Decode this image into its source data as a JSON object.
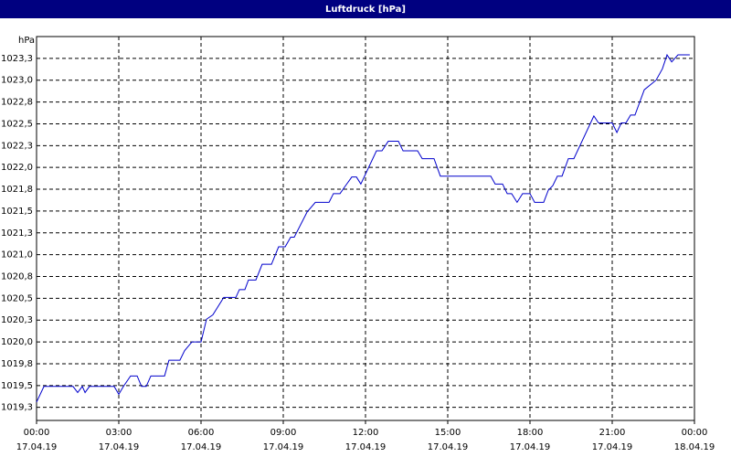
{
  "chart_data": {
    "type": "line",
    "title": "Luftdruck [hPa]",
    "y_label": "hPa",
    "xlim": [
      0,
      24
    ],
    "xticks": [
      {
        "value": 0,
        "label": "00:00",
        "date": "17.04.19"
      },
      {
        "value": 3,
        "label": "03:00",
        "date": "17.04.19"
      },
      {
        "value": 6,
        "label": "06:00",
        "date": "17.04.19"
      },
      {
        "value": 9,
        "label": "09:00",
        "date": "17.04.19"
      },
      {
        "value": 12,
        "label": "12:00",
        "date": "17.04.19"
      },
      {
        "value": 15,
        "label": "15:00",
        "date": "17.04.19"
      },
      {
        "value": 18,
        "label": "18:00",
        "date": "17.04.19"
      },
      {
        "value": 21,
        "label": "21:00",
        "date": "17.04.19"
      },
      {
        "value": 24,
        "label": "00:00",
        "date": "18.04.19"
      }
    ],
    "ylim": [
      1019.1,
      1023.5
    ],
    "yticks": [
      {
        "value": 1019.25,
        "label": "1019,3"
      },
      {
        "value": 1019.5,
        "label": "1019,5"
      },
      {
        "value": 1019.75,
        "label": "1019,8"
      },
      {
        "value": 1020.0,
        "label": "1020,0"
      },
      {
        "value": 1020.25,
        "label": "1020,3"
      },
      {
        "value": 1020.5,
        "label": "1020,5"
      },
      {
        "value": 1020.75,
        "label": "1020,8"
      },
      {
        "value": 1021.0,
        "label": "1021,0"
      },
      {
        "value": 1021.25,
        "label": "1021,3"
      },
      {
        "value": 1021.5,
        "label": "1021,5"
      },
      {
        "value": 1021.75,
        "label": "1021,8"
      },
      {
        "value": 1022.0,
        "label": "1022,0"
      },
      {
        "value": 1022.25,
        "label": "1022,3"
      },
      {
        "value": 1022.5,
        "label": "1022,5"
      },
      {
        "value": 1022.75,
        "label": "1022,8"
      },
      {
        "value": 1023.0,
        "label": "1023,0"
      },
      {
        "value": 1023.25,
        "label": "1023,3"
      }
    ],
    "grid": true,
    "x": [
      0,
      0.27,
      1.33,
      1.5,
      1.67,
      1.77,
      1.93,
      2.83,
      3,
      3.17,
      3.43,
      3.67,
      3.83,
      4,
      4.17,
      4.67,
      4.83,
      5.23,
      5.4,
      5.67,
      6,
      6.2,
      6.43,
      6.83,
      7.27,
      7.4,
      7.6,
      7.73,
      8,
      8.23,
      8.57,
      8.83,
      9.07,
      9.27,
      9.4,
      9.87,
      10.17,
      10.67,
      10.83,
      11.07,
      11.27,
      11.5,
      11.67,
      11.83,
      12.4,
      12.6,
      12.83,
      13.2,
      13.37,
      13.9,
      14.07,
      14.5,
      14.73,
      16.57,
      16.73,
      17,
      17.17,
      17.33,
      17.53,
      17.73,
      18,
      18.17,
      18.5,
      18.67,
      18.83,
      19,
      19.17,
      19.4,
      19.6,
      20.33,
      20.5,
      21,
      21.17,
      21.33,
      21.5,
      21.67,
      21.83,
      22.17,
      22.6,
      22.83,
      23,
      23.17,
      23.4,
      23.83
    ],
    "series": [
      {
        "color": "#0000cc",
        "values": [
          1019.31,
          1019.49,
          1019.49,
          1019.42,
          1019.49,
          1019.42,
          1019.49,
          1019.49,
          1019.4,
          1019.49,
          1019.61,
          1019.61,
          1019.49,
          1019.49,
          1019.61,
          1019.61,
          1019.79,
          1019.79,
          1019.9,
          1020.0,
          1020.0,
          1020.26,
          1020.31,
          1020.51,
          1020.51,
          1020.6,
          1020.6,
          1020.71,
          1020.71,
          1020.89,
          1020.89,
          1021.09,
          1021.09,
          1021.2,
          1021.2,
          1021.49,
          1021.6,
          1021.6,
          1021.7,
          1021.7,
          1021.79,
          1021.89,
          1021.89,
          1021.81,
          1022.19,
          1022.19,
          1022.3,
          1022.3,
          1022.19,
          1022.19,
          1022.1,
          1022.1,
          1021.9,
          1021.9,
          1021.81,
          1021.81,
          1021.7,
          1021.7,
          1021.6,
          1021.7,
          1021.7,
          1021.6,
          1021.6,
          1021.74,
          1021.79,
          1021.9,
          1021.9,
          1022.1,
          1022.1,
          1022.59,
          1022.51,
          1022.51,
          1022.4,
          1022.51,
          1022.51,
          1022.6,
          1022.6,
          1022.89,
          1023.0,
          1023.13,
          1023.29,
          1023.21,
          1023.29,
          1023.29
        ]
      }
    ]
  }
}
